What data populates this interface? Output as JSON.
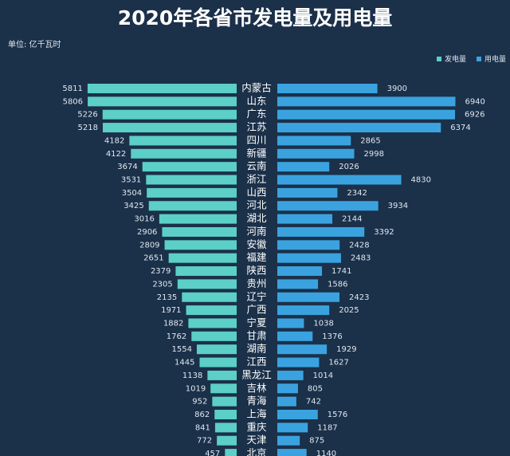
{
  "chart_data": {
    "type": "butterfly",
    "title": "2020年各省市发电量及用电量",
    "unit_label": "单位: 亿千瓦时",
    "categories": [
      "内蒙古",
      "山东",
      "广东",
      "江苏",
      "四川",
      "新疆",
      "云南",
      "浙江",
      "山西",
      "河北",
      "湖北",
      "河南",
      "安徽",
      "福建",
      "陕西",
      "贵州",
      "辽宁",
      "广西",
      "宁夏",
      "甘肃",
      "湖南",
      "江西",
      "黑龙江",
      "吉林",
      "青海",
      "上海",
      "重庆",
      "天津",
      "北京"
    ],
    "series": [
      {
        "name": "发电量",
        "color": "#5ccfc6",
        "values": [
          5811,
          5806,
          5226,
          5218,
          4182,
          4122,
          3674,
          3531,
          3504,
          3425,
          3016,
          2906,
          2809,
          2651,
          2379,
          2305,
          2135,
          1971,
          1882,
          1762,
          1554,
          1445,
          1138,
          1019,
          952,
          862,
          841,
          772,
          457
        ]
      },
      {
        "name": "用电量",
        "color": "#3aa3df",
        "values": [
          3900,
          6940,
          6926,
          6374,
          2865,
          2998,
          2026,
          4830,
          2342,
          3934,
          2144,
          3392,
          2428,
          2483,
          1741,
          1586,
          2423,
          2025,
          1038,
          1376,
          1929,
          1627,
          1014,
          805,
          742,
          1576,
          1187,
          875,
          1140
        ]
      }
    ]
  }
}
